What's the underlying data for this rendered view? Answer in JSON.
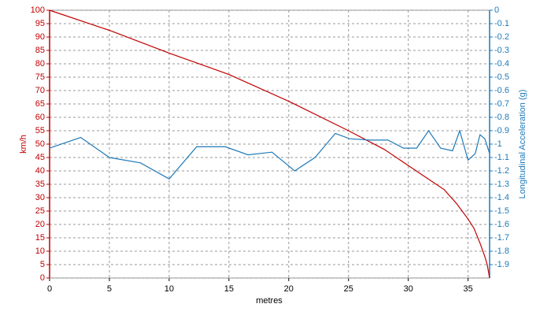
{
  "chart_data": {
    "type": "line",
    "xlabel": "metres",
    "ylabel": "km/h",
    "y2label": "Longitudinal Acceleration (g)",
    "xlim": [
      0,
      36.8
    ],
    "xticks": [
      0,
      5,
      10,
      15,
      20,
      25,
      30,
      35
    ],
    "ylim": [
      0,
      100
    ],
    "yticks": [
      0,
      5,
      10,
      15,
      20,
      25,
      30,
      35,
      40,
      45,
      50,
      55,
      60,
      65,
      70,
      75,
      80,
      85,
      90,
      95,
      100
    ],
    "y2lim": [
      -2,
      0
    ],
    "y2ticks": [
      0,
      -0.1,
      -0.2,
      -0.3,
      -0.4,
      -0.5,
      -0.6,
      -0.7,
      -0.8,
      -0.9,
      -1,
      -1.1,
      -1.2,
      -1.3,
      -1.4,
      -1.5,
      -1.6,
      -1.7,
      -1.8,
      -1.9
    ],
    "grid": true,
    "series": [
      {
        "name": "km/h",
        "color": "#c00000",
        "axis": "y",
        "x": [
          0,
          5,
          10,
          15,
          20,
          25,
          28,
          30,
          32,
          33,
          34,
          35,
          35.5,
          36,
          36.4,
          36.6,
          36.8
        ],
        "values": [
          100,
          92.5,
          84,
          76,
          66,
          55,
          48,
          42,
          36,
          33,
          28,
          22,
          18.5,
          13,
          8,
          5,
          0
        ]
      },
      {
        "name": "Longitudinal Acceleration (g)",
        "color": "#1f7ab8",
        "axis": "y2",
        "x": [
          0,
          2.6,
          5,
          7.6,
          10,
          12.3,
          14.7,
          16.6,
          18.6,
          20.5,
          22.2,
          23.9,
          25.1,
          26.8,
          28.3,
          29.6,
          30.7,
          31.7,
          32.7,
          33.7,
          34.3,
          35,
          35.6,
          36,
          36.4,
          36.8
        ],
        "values": [
          -1.03,
          -0.95,
          -1.1,
          -1.14,
          -1.26,
          -1.02,
          -1.02,
          -1.08,
          -1.06,
          -1.2,
          -1.1,
          -0.92,
          -0.96,
          -0.97,
          -0.97,
          -1.03,
          -1.03,
          -0.9,
          -1.03,
          -1.05,
          -0.9,
          -1.12,
          -1.07,
          -0.93,
          -0.96,
          -1.07
        ]
      }
    ]
  }
}
